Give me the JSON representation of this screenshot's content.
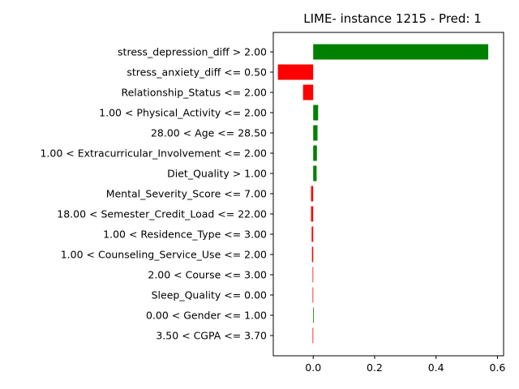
{
  "chart_data": {
    "type": "bar",
    "orientation": "horizontal",
    "title": "LIME- instance 1215 - Pred: 1",
    "xlabel": "",
    "ylabel": "",
    "xlim": [
      -0.115,
      0.605
    ],
    "xticks": [
      0.0,
      0.2,
      0.4,
      0.6
    ],
    "xtick_labels": [
      "0.0",
      "0.2",
      "0.4",
      "0.6"
    ],
    "grid": false,
    "colors": {
      "positive": "#008000",
      "negative": "#ff0000"
    },
    "categories": [
      "stress_depression_diff > 2.00",
      "stress_anxiety_diff <= 0.50",
      "Relationship_Status <= 2.00",
      "1.00 < Physical_Activity <= 2.00",
      "28.00 < Age <= 28.50",
      "1.00 < Extracurricular_Involvement <= 2.00",
      "Diet_Quality > 1.00",
      "Mental_Severity_Score <= 7.00",
      "18.00 < Semester_Credit_Load <= 22.00",
      "1.00 < Residence_Type <= 3.00",
      "1.00 < Counseling_Service_Use <= 2.00",
      "2.00 < Course <= 3.00",
      "Sleep_Quality <= 0.00",
      "0.00 < Gender <= 1.00",
      "3.50 < CGPA <= 3.70"
    ],
    "values": [
      0.57,
      -0.115,
      -0.033,
      0.016,
      0.014,
      0.012,
      0.011,
      -0.007,
      -0.007,
      -0.005,
      -0.004,
      -0.002,
      -0.002,
      0.002,
      -0.002
    ]
  }
}
